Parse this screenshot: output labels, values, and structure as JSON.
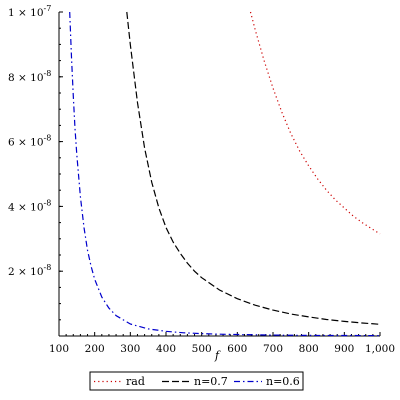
{
  "chart_data": {
    "type": "line",
    "xlabel": "f",
    "ylabel": "",
    "xlim": [
      100,
      1000
    ],
    "ylim": [
      0,
      1e-07
    ],
    "x_ticks": [
      "100",
      "200",
      "300",
      "400",
      "500",
      "600",
      "700",
      "800",
      "900",
      "1,000"
    ],
    "y_ticks": [
      {
        "value": 2e-08,
        "mantissa": "2",
        "exponent": "-8"
      },
      {
        "value": 4e-08,
        "mantissa": "4",
        "exponent": "-8"
      },
      {
        "value": 6e-08,
        "mantissa": "6",
        "exponent": "-8"
      },
      {
        "value": 8e-08,
        "mantissa": "8",
        "exponent": "-8"
      },
      {
        "value": 1e-07,
        "mantissa": "1",
        "exponent": "-7"
      }
    ],
    "legend_position": "bottom",
    "series": [
      {
        "name": "rad",
        "color": "#cc0000",
        "style": "dotted",
        "x": [
          637,
          650,
          675,
          700,
          725,
          750,
          775,
          800,
          825,
          850,
          875,
          900,
          925,
          950,
          975,
          1000
        ],
        "y": [
          1e-07,
          9.45e-08,
          8.5e-08,
          7.65e-08,
          6.9e-08,
          6.25e-08,
          5.7e-08,
          5.25e-08,
          4.85e-08,
          4.5e-08,
          4.2e-08,
          3.95e-08,
          3.7e-08,
          3.5e-08,
          3.32e-08,
          3.15e-08
        ]
      },
      {
        "name": "n=0.7",
        "color": "#000000",
        "style": "dashed",
        "x": [
          290,
          300,
          320,
          340,
          360,
          380,
          400,
          420,
          440,
          460,
          480,
          500,
          550,
          600,
          650,
          700,
          750,
          800,
          850,
          900,
          950,
          1000
        ],
        "y": [
          1e-07,
          9e-08,
          7.2e-08,
          5.8e-08,
          4.75e-08,
          3.95e-08,
          3.35e-08,
          2.9e-08,
          2.55e-08,
          2.25e-08,
          2e-08,
          1.8e-08,
          1.42e-08,
          1.15e-08,
          9.5e-09,
          8e-09,
          6.8e-09,
          5.9e-09,
          5.1e-09,
          4.5e-09,
          4e-09,
          3.6e-09
        ]
      },
      {
        "name": "n=0.6",
        "color": "#0000cc",
        "style": "dashdot",
        "x": [
          130,
          135,
          140,
          145,
          150,
          160,
          170,
          180,
          190,
          200,
          220,
          240,
          260,
          300,
          350,
          400,
          450,
          500,
          550,
          600,
          650,
          700,
          800,
          900,
          1000
        ],
        "y": [
          1e-07,
          8.6e-08,
          7.4e-08,
          6.4e-08,
          5.6e-08,
          4.3e-08,
          3.35e-08,
          2.65e-08,
          2.15e-08,
          1.75e-08,
          1.2e-08,
          8.6e-09,
          6.3e-09,
          3.7e-09,
          2.2e-09,
          1.45e-09,
          1e-09,
          7.5e-10,
          5.7e-10,
          4.5e-10,
          3.6e-10,
          2.9e-10,
          2e-10,
          1.5e-10,
          1.1e-10
        ]
      }
    ]
  }
}
